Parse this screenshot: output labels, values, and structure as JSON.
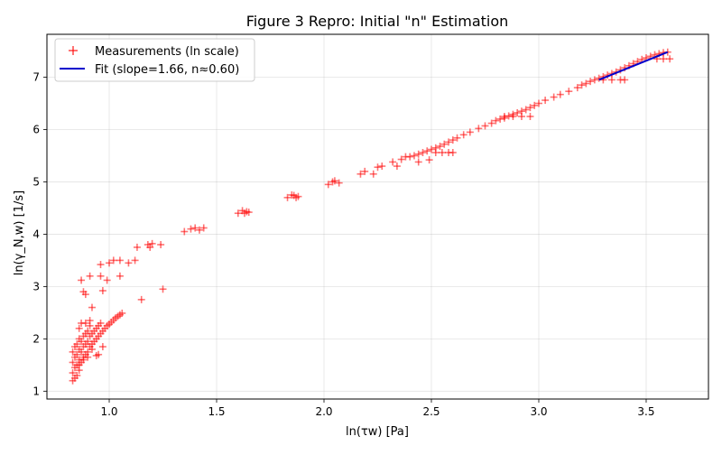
{
  "chart_data": {
    "type": "scatter",
    "title": "Figure 3 Repro: Initial \"n\" Estimation",
    "xlabel": "ln(τw) [Pa]",
    "ylabel": "ln(γ_N,w) [1/s]",
    "xlim": [
      0.71,
      3.79
    ],
    "ylim": [
      0.85,
      7.82
    ],
    "grid": true,
    "legend_position": "top-left",
    "x_ticks": [
      {
        "value": 1.0,
        "label": "1.0"
      },
      {
        "value": 1.5,
        "label": "1.5"
      },
      {
        "value": 2.0,
        "label": "2.0"
      },
      {
        "value": 2.5,
        "label": "2.5"
      },
      {
        "value": 3.0,
        "label": "3.0"
      },
      {
        "value": 3.5,
        "label": "3.5"
      }
    ],
    "y_ticks": [
      {
        "value": 1,
        "label": "1"
      },
      {
        "value": 2,
        "label": "2"
      },
      {
        "value": 3,
        "label": "3"
      },
      {
        "value": 4,
        "label": "4"
      },
      {
        "value": 5,
        "label": "5"
      },
      {
        "value": 6,
        "label": "6"
      },
      {
        "value": 7,
        "label": "7"
      }
    ],
    "series": [
      {
        "name": "Measurements (ln scale)",
        "kind": "scatter",
        "marker": "plus",
        "color": "#ff0000",
        "opacity": 0.55,
        "points": [
          [
            0.83,
            1.2
          ],
          [
            0.83,
            1.35
          ],
          [
            0.84,
            1.45
          ],
          [
            0.83,
            1.55
          ],
          [
            0.84,
            1.65
          ],
          [
            0.83,
            1.75
          ],
          [
            0.84,
            1.85
          ],
          [
            0.85,
            1.3
          ],
          [
            0.85,
            1.5
          ],
          [
            0.85,
            1.7
          ],
          [
            0.85,
            1.9
          ],
          [
            0.86,
            1.4
          ],
          [
            0.86,
            1.6
          ],
          [
            0.86,
            1.8
          ],
          [
            0.86,
            2.0
          ],
          [
            0.87,
            1.55
          ],
          [
            0.87,
            1.75
          ],
          [
            0.87,
            1.95
          ],
          [
            0.88,
            1.65
          ],
          [
            0.88,
            1.85
          ],
          [
            0.88,
            2.05
          ],
          [
            0.89,
            1.7
          ],
          [
            0.89,
            1.9
          ],
          [
            0.89,
            2.1
          ],
          [
            0.9,
            1.75
          ],
          [
            0.9,
            1.95
          ],
          [
            0.9,
            2.15
          ],
          [
            0.91,
            1.85
          ],
          [
            0.91,
            2.05
          ],
          [
            0.91,
            2.25
          ],
          [
            0.92,
            1.9
          ],
          [
            0.92,
            2.1
          ],
          [
            0.93,
            1.95
          ],
          [
            0.93,
            2.15
          ],
          [
            0.94,
            2.0
          ],
          [
            0.94,
            2.2
          ],
          [
            0.95,
            2.05
          ],
          [
            0.95,
            2.25
          ],
          [
            0.96,
            2.1
          ],
          [
            0.96,
            2.3
          ],
          [
            0.97,
            2.15
          ],
          [
            0.98,
            2.2
          ],
          [
            0.99,
            2.25
          ],
          [
            1.0,
            2.28
          ],
          [
            1.01,
            2.32
          ],
          [
            1.02,
            2.36
          ],
          [
            1.03,
            2.4
          ],
          [
            1.04,
            2.43
          ],
          [
            1.05,
            2.46
          ],
          [
            1.06,
            2.49
          ],
          [
            0.84,
            1.25
          ],
          [
            0.86,
            1.5
          ],
          [
            0.88,
            1.6
          ],
          [
            0.9,
            1.65
          ],
          [
            0.92,
            1.8
          ],
          [
            0.95,
            1.7
          ],
          [
            0.97,
            1.85
          ],
          [
            0.87,
            2.3
          ],
          [
            0.89,
            2.3
          ],
          [
            0.91,
            2.35
          ],
          [
            0.86,
            2.2
          ],
          [
            0.94,
            1.68
          ],
          [
            0.87,
            3.12
          ],
          [
            0.88,
            2.9
          ],
          [
            0.89,
            2.85
          ],
          [
            0.91,
            3.2
          ],
          [
            0.92,
            2.6
          ],
          [
            0.96,
            3.42
          ],
          [
            0.96,
            3.2
          ],
          [
            0.97,
            2.92
          ],
          [
            0.99,
            3.12
          ],
          [
            1.0,
            3.45
          ],
          [
            1.02,
            3.5
          ],
          [
            1.05,
            3.5
          ],
          [
            1.05,
            3.2
          ],
          [
            1.09,
            3.45
          ],
          [
            1.12,
            3.5
          ],
          [
            1.13,
            3.75
          ],
          [
            1.15,
            2.75
          ],
          [
            1.18,
            3.8
          ],
          [
            1.19,
            3.75
          ],
          [
            1.2,
            3.82
          ],
          [
            1.24,
            3.8
          ],
          [
            1.25,
            2.95
          ],
          [
            1.35,
            4.05
          ],
          [
            1.38,
            4.1
          ],
          [
            1.4,
            4.12
          ],
          [
            1.42,
            4.08
          ],
          [
            1.44,
            4.12
          ],
          [
            1.6,
            4.4
          ],
          [
            1.62,
            4.45
          ],
          [
            1.63,
            4.4
          ],
          [
            1.64,
            4.43
          ],
          [
            1.65,
            4.42
          ],
          [
            1.83,
            4.7
          ],
          [
            1.85,
            4.75
          ],
          [
            1.86,
            4.74
          ],
          [
            1.87,
            4.7
          ],
          [
            1.88,
            4.72
          ],
          [
            2.02,
            4.95
          ],
          [
            2.04,
            5.0
          ],
          [
            2.05,
            5.02
          ],
          [
            2.07,
            4.98
          ],
          [
            2.17,
            5.15
          ],
          [
            2.19,
            5.2
          ],
          [
            2.23,
            5.15
          ],
          [
            2.25,
            5.28
          ],
          [
            2.27,
            5.3
          ],
          [
            2.32,
            5.38
          ],
          [
            2.34,
            5.3
          ],
          [
            2.36,
            5.43
          ],
          [
            2.38,
            5.48
          ],
          [
            2.4,
            5.48
          ],
          [
            2.42,
            5.5
          ],
          [
            2.44,
            5.38
          ],
          [
            2.44,
            5.53
          ],
          [
            2.46,
            5.56
          ],
          [
            2.48,
            5.59
          ],
          [
            2.49,
            5.42
          ],
          [
            2.5,
            5.62
          ],
          [
            2.52,
            5.65
          ],
          [
            2.54,
            5.68
          ],
          [
            2.56,
            5.72
          ],
          [
            2.58,
            5.76
          ],
          [
            2.6,
            5.8
          ],
          [
            2.62,
            5.84
          ],
          [
            2.65,
            5.9
          ],
          [
            2.68,
            5.95
          ],
          [
            2.72,
            6.02
          ],
          [
            2.75,
            6.07
          ],
          [
            2.78,
            6.12
          ],
          [
            2.8,
            6.17
          ],
          [
            2.82,
            6.2
          ],
          [
            2.84,
            6.22
          ],
          [
            2.86,
            6.26
          ],
          [
            2.88,
            6.29
          ],
          [
            2.9,
            6.32
          ],
          [
            2.92,
            6.35
          ],
          [
            2.94,
            6.38
          ],
          [
            2.96,
            6.42
          ],
          [
            2.98,
            6.46
          ],
          [
            3.0,
            6.5
          ],
          [
            3.03,
            6.56
          ],
          [
            3.07,
            6.62
          ],
          [
            3.1,
            6.67
          ],
          [
            3.14,
            6.73
          ],
          [
            3.18,
            6.8
          ],
          [
            3.2,
            6.85
          ],
          [
            3.22,
            6.88
          ],
          [
            3.24,
            6.92
          ],
          [
            3.26,
            6.95
          ],
          [
            3.28,
            6.98
          ],
          [
            3.3,
            7.01
          ],
          [
            3.32,
            7.04
          ],
          [
            3.34,
            7.07
          ],
          [
            3.36,
            7.1
          ],
          [
            3.38,
            7.14
          ],
          [
            3.4,
            7.18
          ],
          [
            3.42,
            7.22
          ],
          [
            3.44,
            7.26
          ],
          [
            3.46,
            7.3
          ],
          [
            3.48,
            7.34
          ],
          [
            3.5,
            7.37
          ],
          [
            3.52,
            7.4
          ],
          [
            3.54,
            7.43
          ],
          [
            3.56,
            7.45
          ],
          [
            3.58,
            7.47
          ],
          [
            3.6,
            7.48
          ],
          [
            3.61,
            7.35
          ],
          [
            2.52,
            5.56
          ],
          [
            2.55,
            5.56
          ],
          [
            2.58,
            5.56
          ],
          [
            2.6,
            5.56
          ],
          [
            2.84,
            6.25
          ],
          [
            2.88,
            6.25
          ],
          [
            2.92,
            6.25
          ],
          [
            2.96,
            6.25
          ],
          [
            3.3,
            6.95
          ],
          [
            3.34,
            6.95
          ],
          [
            3.38,
            6.95
          ],
          [
            3.4,
            6.95
          ],
          [
            3.55,
            7.35
          ],
          [
            3.58,
            7.35
          ]
        ]
      },
      {
        "name": "Fit (slope=1.66, n≈0.60)",
        "kind": "line",
        "color": "#0000cc",
        "x": [
          3.28,
          3.6
        ],
        "y": [
          6.95,
          7.48
        ]
      }
    ]
  }
}
